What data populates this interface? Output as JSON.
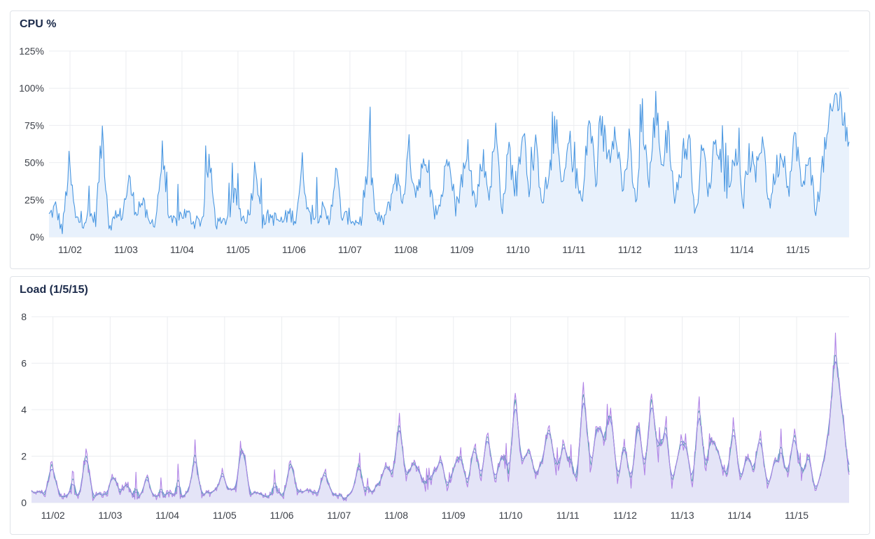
{
  "colors": {
    "cpu_line": "#4a97e1",
    "cpu_fill": "#e8f1fc",
    "load_1": "#b084e6",
    "load_5": "#4fb3a9",
    "load_15": "#7b8ae0",
    "load_fill": "#e4e4f7",
    "grid": "#ebedf0"
  },
  "chart_data": [
    {
      "type": "area",
      "title": "CPU %",
      "x_axis": {
        "kind": "date",
        "start": "2025-11-01T15:00",
        "end": "2025-11-15T22:00",
        "tick_labels": [
          "11/02",
          "11/03",
          "11/04",
          "11/05",
          "11/06",
          "11/07",
          "11/08",
          "11/09",
          "11/10",
          "11/11",
          "11/12",
          "11/13",
          "11/14",
          "11/15"
        ]
      },
      "y_axis": {
        "ylim": [
          0,
          125
        ],
        "ticks": [
          0,
          25,
          50,
          75,
          100,
          125
        ],
        "unit": "%"
      },
      "grid": true,
      "series": [
        {
          "interval_hours": 6,
          "values": [
            14,
            20,
            4,
            48,
            12,
            10,
            15,
            12,
            70,
            8,
            12,
            16,
            38,
            18,
            24,
            8,
            12,
            55,
            9,
            11,
            16,
            14,
            9,
            12,
            52,
            10,
            8,
            16,
            28,
            12,
            15,
            50,
            10,
            14,
            12,
            10,
            16,
            12,
            48,
            14,
            13,
            18,
            10,
            45,
            12,
            14,
            10,
            12,
            56,
            14,
            10,
            20,
            42,
            24,
            58,
            30,
            48,
            35,
            12,
            30,
            62,
            18,
            42,
            50,
            20,
            55,
            28,
            70,
            18,
            60,
            25,
            78,
            34,
            58,
            26,
            40,
            75,
            30,
            65,
            42,
            22,
            82,
            38,
            70,
            55,
            80,
            30,
            62,
            20,
            82,
            35,
            88,
            48,
            70,
            22,
            55,
            65,
            14,
            60,
            30,
            72,
            45,
            28,
            62,
            20,
            55,
            40,
            72,
            20,
            45,
            58,
            35,
            70,
            28,
            60,
            12,
            48,
            72,
            95,
            85,
            64
          ],
          "peak_max": 98
        }
      ]
    },
    {
      "type": "area",
      "title": "Load (1/5/15)",
      "x_axis": {
        "kind": "date",
        "start": "2025-11-01T15:00",
        "end": "2025-11-15T22:00",
        "tick_labels": [
          "11/02",
          "11/03",
          "11/04",
          "11/05",
          "11/06",
          "11/07",
          "11/08",
          "11/09",
          "11/10",
          "11/11",
          "11/12",
          "11/13",
          "11/14",
          "11/15"
        ]
      },
      "y_axis": {
        "ylim": [
          0,
          8
        ],
        "ticks": [
          0,
          2,
          4,
          6,
          8
        ]
      },
      "grid": true,
      "series": [
        {
          "interval_hours": 6,
          "values": [
            0.4,
            0.6,
            0.3,
            1.8,
            0.3,
            0.3,
            0.5,
            0.3,
            2.2,
            0.2,
            0.4,
            0.3,
            1.2,
            0.5,
            0.8,
            0.3,
            0.3,
            1.0,
            0.2,
            0.3,
            0.4,
            0.4,
            0.3,
            0.4,
            2.0,
            0.3,
            0.4,
            0.5,
            1.2,
            0.5,
            0.6,
            2.5,
            0.4,
            0.5,
            0.3,
            0.3,
            0.6,
            0.3,
            1.9,
            0.5,
            0.4,
            0.6,
            0.3,
            1.5,
            0.3,
            0.3,
            0.2,
            0.3,
            1.6,
            0.4,
            0.5,
            0.8,
            1.5,
            1.2,
            3.5,
            1.0,
            1.8,
            1.3,
            0.5,
            1.2,
            2.0,
            0.6,
            1.5,
            2.2,
            0.8,
            2.5,
            1.0,
            3.0,
            0.8,
            2.3,
            1.0,
            4.5,
            1.5,
            2.5,
            1.2,
            1.8,
            3.5,
            1.0,
            2.5,
            1.6,
            0.8,
            4.8,
            1.4,
            3.5,
            2.5,
            3.8,
            1.0,
            2.5,
            0.8,
            3.5,
            1.3,
            4.8,
            1.8,
            3.0,
            0.8,
            2.0,
            2.8,
            0.6,
            4.2,
            1.2,
            2.8,
            1.8,
            1.0,
            3.3,
            0.8,
            2.0,
            1.5,
            2.8,
            0.6,
            1.6,
            2.2,
            1.3,
            3.0,
            1.0,
            2.2,
            0.4,
            1.5,
            3.0,
            6.8,
            4.0,
            1.2
          ],
          "peak_max": 7.3
        }
      ]
    }
  ]
}
